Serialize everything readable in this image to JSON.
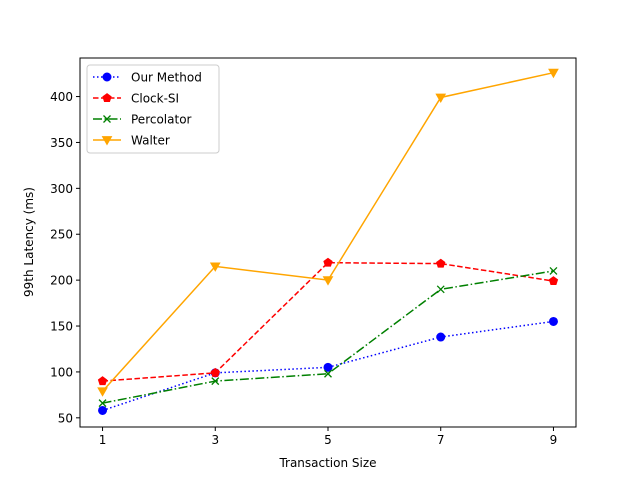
{
  "chart_data": {
    "type": "line",
    "title": "",
    "xlabel": "Transaction Size",
    "ylabel": "99th Latency (ms)",
    "x": [
      1,
      3,
      5,
      7,
      9
    ],
    "x_ticks": [
      "1",
      "3",
      "5",
      "7",
      "9"
    ],
    "y_ticks": [
      "50",
      "100",
      "150",
      "200",
      "250",
      "300",
      "350",
      "400"
    ],
    "xlim": [
      0.6,
      9.4
    ],
    "ylim": [
      40,
      442
    ],
    "grid": false,
    "legend_position": "top-left",
    "series": [
      {
        "name": "Our Method",
        "values": [
          58,
          99,
          105,
          138,
          155
        ],
        "color": "#0000ff",
        "dash": "dotted",
        "marker": "circle"
      },
      {
        "name": "Clock-SI",
        "values": [
          90,
          99,
          219,
          218,
          199
        ],
        "color": "#ff0000",
        "dash": "dashed",
        "marker": "pentagon"
      },
      {
        "name": "Percolator",
        "values": [
          66,
          90,
          98,
          190,
          210
        ],
        "color": "#008000",
        "dash": "dashdot",
        "marker": "x"
      },
      {
        "name": "Walter",
        "values": [
          79,
          215,
          200,
          399,
          426
        ],
        "color": "#ffa500",
        "dash": "solid",
        "marker": "triangle-down"
      }
    ]
  }
}
